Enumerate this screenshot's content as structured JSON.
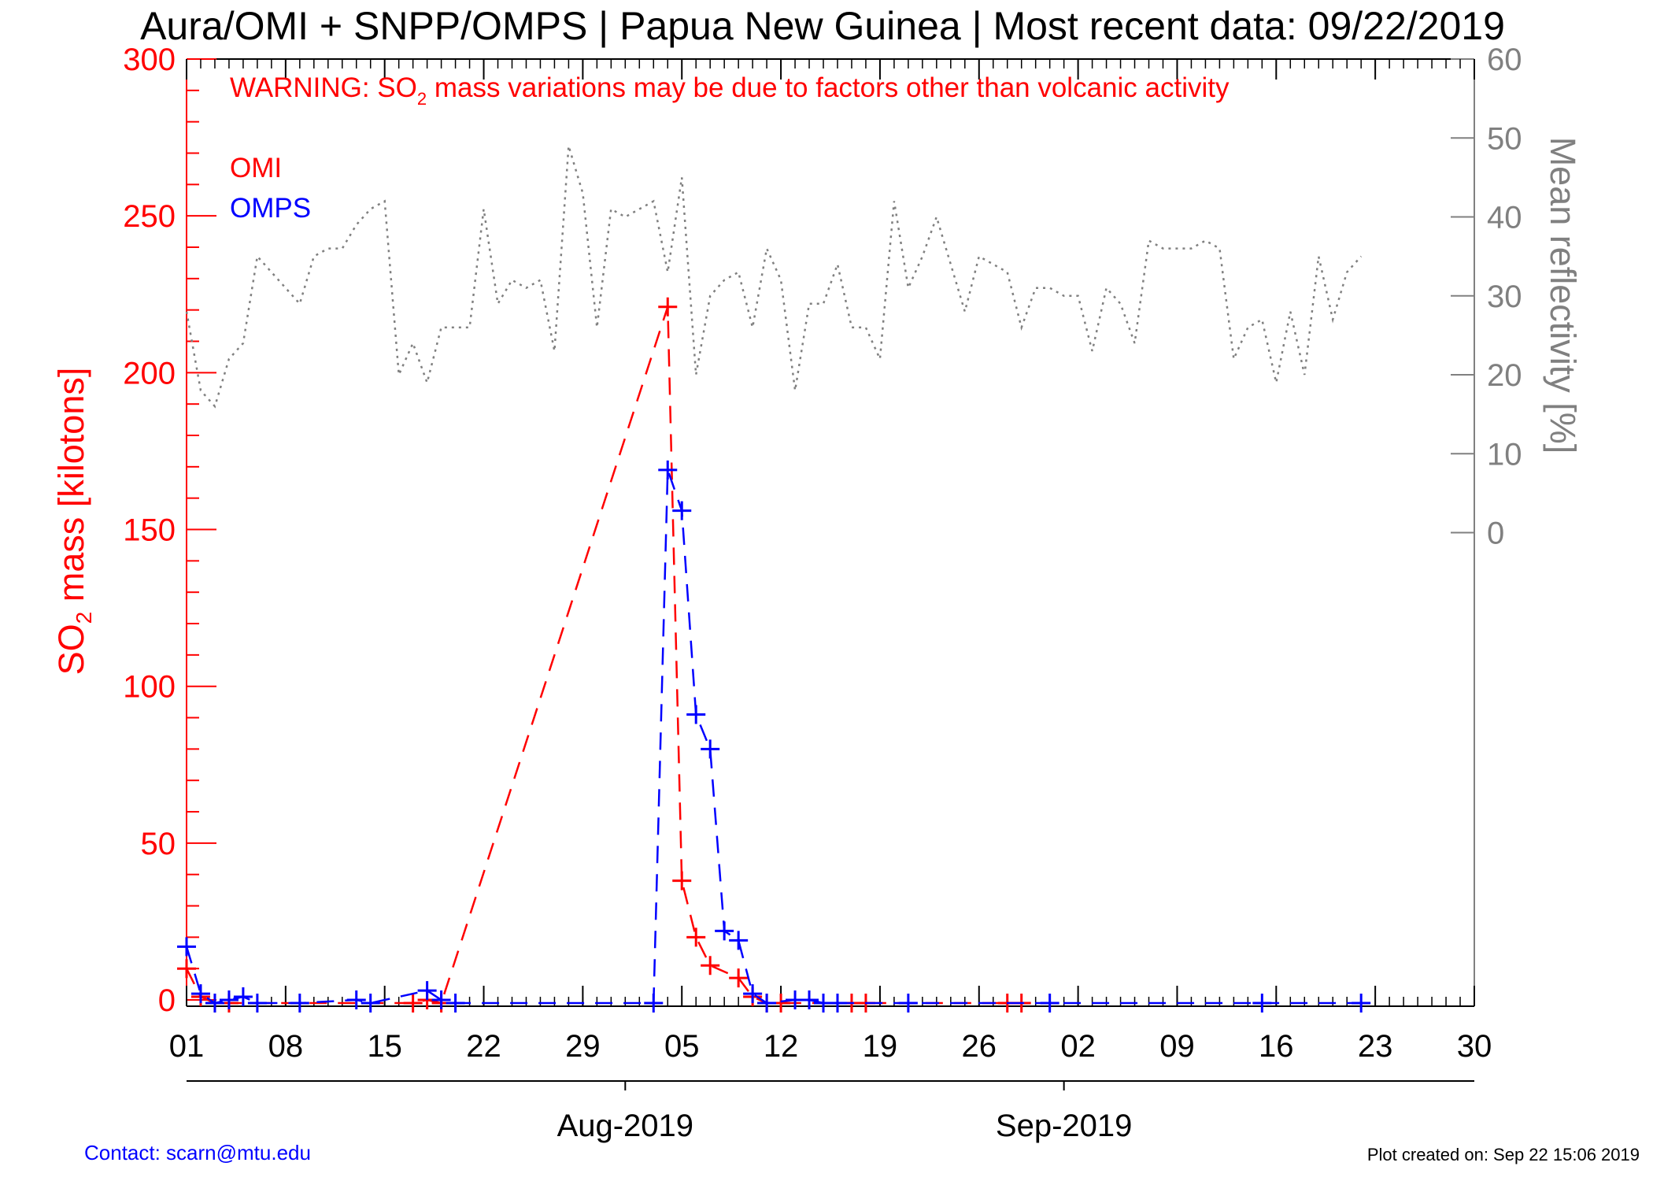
{
  "title": "Aura/OMI + SNPP/OMPS | Papua New Guinea | Most recent data: 09/22/2019",
  "warning": {
    "prefix": "WARNING: SO",
    "subscript": "2",
    "suffix": " mass variations may be due to factors other than volcanic activity"
  },
  "footer": {
    "contact": "Contact: scarn@mtu.edu",
    "created": "Plot created on: Sep 22 15:06 2019"
  },
  "colors": {
    "omi": "#ff0000",
    "omps": "#0000ff",
    "reflectivity": "#808080",
    "axis_left": "#ff0000",
    "axis_right": "#808080",
    "text": "#000000"
  },
  "chart_data": {
    "type": "line",
    "x_type": "date",
    "xlim": [
      "2019-07-01",
      "2019-09-30"
    ],
    "x_ticks": [
      {
        "date": "2019-07-01",
        "label": "01"
      },
      {
        "date": "2019-07-08",
        "label": "08"
      },
      {
        "date": "2019-07-15",
        "label": "15"
      },
      {
        "date": "2019-07-22",
        "label": "22"
      },
      {
        "date": "2019-07-29",
        "label": "29"
      },
      {
        "date": "2019-08-05",
        "label": "05"
      },
      {
        "date": "2019-08-12",
        "label": "12"
      },
      {
        "date": "2019-08-19",
        "label": "19"
      },
      {
        "date": "2019-08-26",
        "label": "26"
      },
      {
        "date": "2019-09-02",
        "label": "02"
      },
      {
        "date": "2019-09-09",
        "label": "09"
      },
      {
        "date": "2019-09-16",
        "label": "16"
      },
      {
        "date": "2019-09-23",
        "label": "23"
      },
      {
        "date": "2019-09-30",
        "label": "30"
      }
    ],
    "month_ticks": [
      "2019-08-01",
      "2019-09-01"
    ],
    "month_labels": [
      {
        "date": "2019-08-01",
        "label": "Aug-2019"
      },
      {
        "date": "2019-09-01",
        "label": "Sep-2019"
      }
    ],
    "ylabel_left": {
      "prefix": "SO",
      "subscript": "2",
      "suffix": " mass [kilotons]"
    },
    "ylim_left": [
      -2,
      300
    ],
    "yticks_left": [
      0,
      50,
      100,
      150,
      200,
      250,
      300
    ],
    "ylabel_right": "Mean reflectivity [%]",
    "ylim_right": [
      -60,
      60
    ],
    "yticks_right": [
      0,
      10,
      20,
      30,
      40,
      50,
      60
    ],
    "grid": false,
    "legend": {
      "placement": "top-left",
      "entries": [
        "OMI",
        "OMPS"
      ]
    },
    "series": [
      {
        "name": "OMI",
        "axis": "left",
        "color": "#ff0000",
        "style": "dashed-cross",
        "points": [
          [
            "2019-07-01",
            10
          ],
          [
            "2019-07-02",
            1
          ],
          [
            "2019-07-03",
            -1
          ],
          [
            "2019-07-04",
            -1
          ],
          [
            "2019-07-17",
            -1
          ],
          [
            "2019-07-18",
            0
          ],
          [
            "2019-07-19",
            -1
          ],
          [
            "2019-08-04",
            221
          ],
          [
            "2019-08-05",
            38
          ],
          [
            "2019-08-06",
            20
          ],
          [
            "2019-08-07",
            11
          ],
          [
            "2019-08-09",
            7
          ],
          [
            "2019-08-10",
            1
          ],
          [
            "2019-08-11",
            -1
          ],
          [
            "2019-08-12",
            -1
          ],
          [
            "2019-08-16",
            -1
          ],
          [
            "2019-08-17",
            -1
          ],
          [
            "2019-08-18",
            -1
          ],
          [
            "2019-08-28",
            -1
          ],
          [
            "2019-08-29",
            -1
          ]
        ]
      },
      {
        "name": "OMPS",
        "axis": "left",
        "color": "#0000ff",
        "style": "dashed-cross",
        "points": [
          [
            "2019-07-01",
            17
          ],
          [
            "2019-07-02",
            2
          ],
          [
            "2019-07-03",
            -1
          ],
          [
            "2019-07-04",
            0
          ],
          [
            "2019-07-05",
            1
          ],
          [
            "2019-07-06",
            -1
          ],
          [
            "2019-07-09",
            -1
          ],
          [
            "2019-07-13",
            0
          ],
          [
            "2019-07-14",
            -1
          ],
          [
            "2019-07-18",
            3
          ],
          [
            "2019-07-19",
            0
          ],
          [
            "2019-07-20",
            -1
          ],
          [
            "2019-08-03",
            -1
          ],
          [
            "2019-08-04",
            169
          ],
          [
            "2019-08-05",
            156
          ],
          [
            "2019-08-06",
            91
          ],
          [
            "2019-08-07",
            80
          ],
          [
            "2019-08-08",
            22
          ],
          [
            "2019-08-09",
            19
          ],
          [
            "2019-08-10",
            2
          ],
          [
            "2019-08-11",
            -1
          ],
          [
            "2019-08-13",
            0
          ],
          [
            "2019-08-14",
            0
          ],
          [
            "2019-08-15",
            -1
          ],
          [
            "2019-08-16",
            -1
          ],
          [
            "2019-08-21",
            -1
          ],
          [
            "2019-08-31",
            -1
          ],
          [
            "2019-09-15",
            -1
          ],
          [
            "2019-09-22",
            -1
          ]
        ]
      },
      {
        "name": "Mean reflectivity",
        "axis": "right",
        "color": "#808080",
        "style": "dotted",
        "points": [
          [
            "2019-07-01",
            28
          ],
          [
            "2019-07-02",
            18
          ],
          [
            "2019-07-03",
            16
          ],
          [
            "2019-07-04",
            22
          ],
          [
            "2019-07-05",
            24
          ],
          [
            "2019-07-06",
            35
          ],
          [
            "2019-07-07",
            33
          ],
          [
            "2019-07-08",
            31
          ],
          [
            "2019-07-09",
            29
          ],
          [
            "2019-07-10",
            35
          ],
          [
            "2019-07-11",
            36
          ],
          [
            "2019-07-12",
            36
          ],
          [
            "2019-07-13",
            39
          ],
          [
            "2019-07-14",
            41
          ],
          [
            "2019-07-15",
            42
          ],
          [
            "2019-07-16",
            20
          ],
          [
            "2019-07-17",
            24
          ],
          [
            "2019-07-18",
            19
          ],
          [
            "2019-07-19",
            26
          ],
          [
            "2019-07-20",
            26
          ],
          [
            "2019-07-21",
            26
          ],
          [
            "2019-07-22",
            41
          ],
          [
            "2019-07-23",
            29
          ],
          [
            "2019-07-24",
            32
          ],
          [
            "2019-07-25",
            31
          ],
          [
            "2019-07-26",
            32
          ],
          [
            "2019-07-27",
            23
          ],
          [
            "2019-07-28",
            49
          ],
          [
            "2019-07-29",
            43
          ],
          [
            "2019-07-30",
            26
          ],
          [
            "2019-07-31",
            41
          ],
          [
            "2019-08-01",
            40
          ],
          [
            "2019-08-02",
            41
          ],
          [
            "2019-08-03",
            42
          ],
          [
            "2019-08-04",
            33
          ],
          [
            "2019-08-05",
            45
          ],
          [
            "2019-08-06",
            20
          ],
          [
            "2019-08-07",
            30
          ],
          [
            "2019-08-08",
            32
          ],
          [
            "2019-08-09",
            33
          ],
          [
            "2019-08-10",
            26
          ],
          [
            "2019-08-11",
            36
          ],
          [
            "2019-08-12",
            32
          ],
          [
            "2019-08-13",
            18
          ],
          [
            "2019-08-14",
            29
          ],
          [
            "2019-08-15",
            29
          ],
          [
            "2019-08-16",
            34
          ],
          [
            "2019-08-17",
            26
          ],
          [
            "2019-08-18",
            26
          ],
          [
            "2019-08-19",
            22
          ],
          [
            "2019-08-20",
            42
          ],
          [
            "2019-08-21",
            31
          ],
          [
            "2019-08-22",
            35
          ],
          [
            "2019-08-23",
            40
          ],
          [
            "2019-08-24",
            34
          ],
          [
            "2019-08-25",
            28
          ],
          [
            "2019-08-26",
            35
          ],
          [
            "2019-08-27",
            34
          ],
          [
            "2019-08-28",
            33
          ],
          [
            "2019-08-29",
            26
          ],
          [
            "2019-08-30",
            31
          ],
          [
            "2019-08-31",
            31
          ],
          [
            "2019-09-01",
            30
          ],
          [
            "2019-09-02",
            30
          ],
          [
            "2019-09-03",
            23
          ],
          [
            "2019-09-04",
            31
          ],
          [
            "2019-09-05",
            29
          ],
          [
            "2019-09-06",
            24
          ],
          [
            "2019-09-07",
            37
          ],
          [
            "2019-09-08",
            36
          ],
          [
            "2019-09-09",
            36
          ],
          [
            "2019-09-10",
            36
          ],
          [
            "2019-09-11",
            37
          ],
          [
            "2019-09-12",
            36
          ],
          [
            "2019-09-13",
            22
          ],
          [
            "2019-09-14",
            26
          ],
          [
            "2019-09-15",
            27
          ],
          [
            "2019-09-16",
            19
          ],
          [
            "2019-09-17",
            28
          ],
          [
            "2019-09-18",
            20
          ],
          [
            "2019-09-19",
            35
          ],
          [
            "2019-09-20",
            27
          ],
          [
            "2019-09-21",
            33
          ],
          [
            "2019-09-22",
            35
          ]
        ]
      }
    ]
  }
}
